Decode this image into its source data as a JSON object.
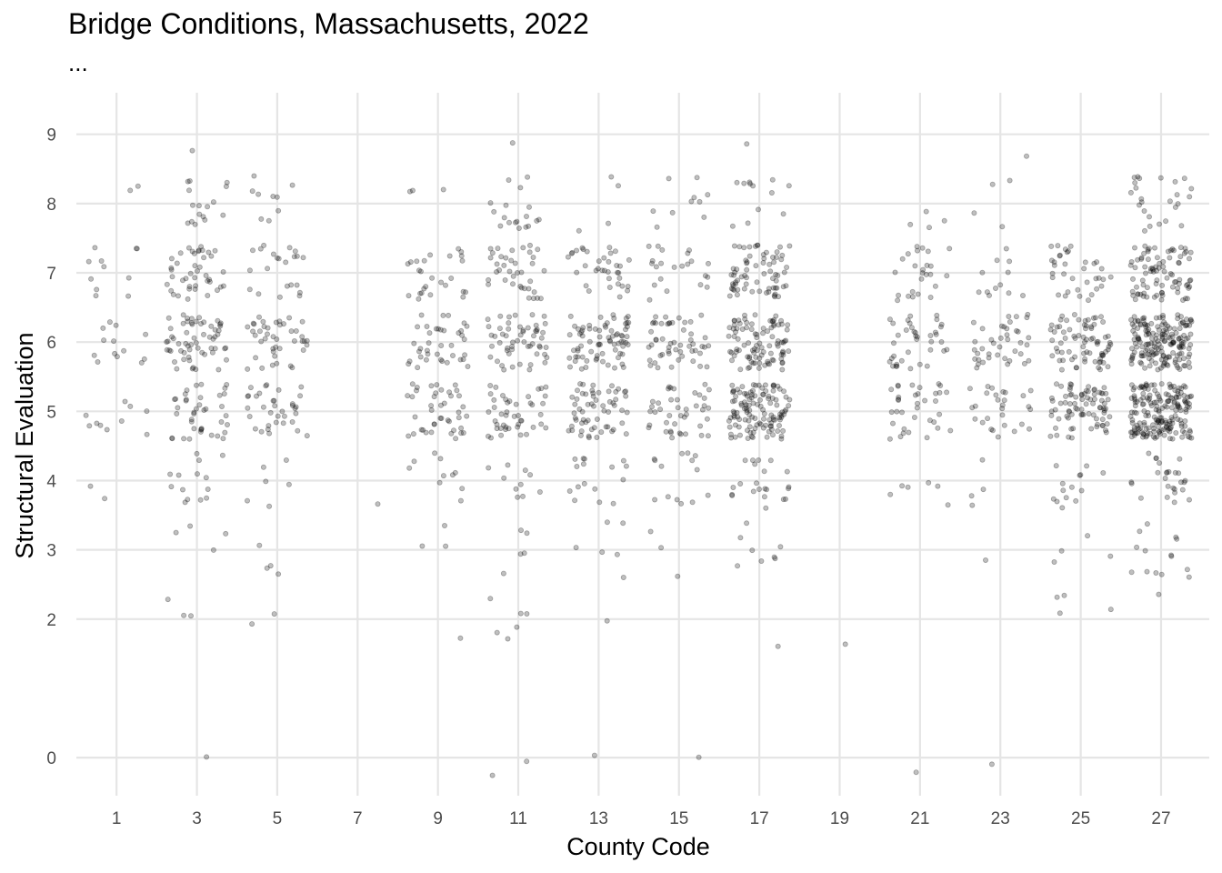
{
  "chart_data": {
    "type": "scatter",
    "title": "Bridge Conditions, Massachusetts, 2022",
    "subtitle": "...",
    "xlabel": "County Code",
    "ylabel": "Structural Evaluation",
    "xlim": [
      0.0,
      28.2
    ],
    "ylim": [
      -0.55,
      9.6
    ],
    "x_ticks": [
      1,
      3,
      5,
      7,
      9,
      11,
      13,
      15,
      17,
      19,
      21,
      23,
      25,
      27
    ],
    "y_ticks": [
      0,
      2,
      3,
      4,
      5,
      6,
      7,
      8,
      9
    ],
    "grid": true,
    "point_color": "#000000",
    "point_opacity": 0.25,
    "jitter": {
      "x_width": 0.4,
      "y_width": 0.4
    },
    "points_by_county": [
      {
        "county": 1,
        "counts": {
          "4": 2,
          "5": 10,
          "6": 13,
          "7": 11,
          "8": 2
        }
      },
      {
        "county": 3,
        "counts": {
          "0": 1,
          "2": 3,
          "3": 4,
          "4": 14,
          "5": 40,
          "6": 60,
          "7": 42,
          "8": 16,
          "9": 1
        }
      },
      {
        "county": 5,
        "counts": {
          "2": 2,
          "3": 4,
          "4": 6,
          "5": 35,
          "6": 42,
          "7": 22,
          "8": 9
        }
      },
      {
        "county": 7,
        "counts": {
          "4": 1
        }
      },
      {
        "county": 9,
        "counts": {
          "2": 1,
          "3": 3,
          "4": 10,
          "5": 42,
          "6": 38,
          "7": 26,
          "8": 3
        }
      },
      {
        "county": 11,
        "counts": {
          "0": 2,
          "2": 6,
          "3": 5,
          "4": 10,
          "5": 45,
          "6": 55,
          "7": 38,
          "8": 18,
          "9": 1
        }
      },
      {
        "county": 13,
        "counts": {
          "0": 1,
          "2": 1,
          "3": 6,
          "4": 16,
          "5": 60,
          "6": 75,
          "7": 35,
          "8": 4
        }
      },
      {
        "county": 15,
        "counts": {
          "0": 1,
          "3": 3,
          "4": 14,
          "5": 42,
          "6": 52,
          "7": 22,
          "8": 10
        }
      },
      {
        "county": 17,
        "counts": {
          "2": 1,
          "3": 8,
          "4": 22,
          "5": 120,
          "6": 95,
          "7": 70,
          "8": 12,
          "9": 1
        }
      },
      {
        "county": 19,
        "counts": {
          "2": 1
        }
      },
      {
        "county": 21,
        "counts": {
          "-0.4": 1,
          "4": 6,
          "5": 35,
          "6": 38,
          "7": 25,
          "8": 4
        }
      },
      {
        "county": 23,
        "counts": {
          "-0.4": 1,
          "3": 1,
          "4": 4,
          "5": 28,
          "6": 40,
          "7": 12,
          "8": 4,
          "9": 1
        }
      },
      {
        "county": 25,
        "counts": {
          "2": 4,
          "3": 4,
          "4": 14,
          "5": 80,
          "6": 75,
          "7": 35
        }
      },
      {
        "county": 27,
        "counts": {
          "2": 1,
          "3": 14,
          "4": 26,
          "5": 185,
          "6": 175,
          "7": 85,
          "8": 25
        }
      }
    ]
  }
}
